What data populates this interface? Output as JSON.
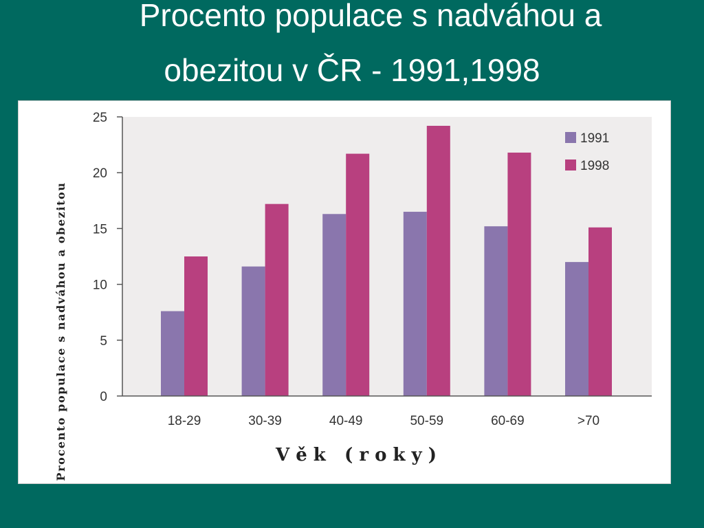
{
  "slide": {
    "title_line1": "Procento populace s nadváhou a",
    "title_line2": "obezitou v ČR - 1991,1998"
  },
  "chart_data": {
    "type": "bar",
    "categories": [
      "18-29",
      "30-39",
      "40-49",
      "50-59",
      "60-69",
      ">70"
    ],
    "series": [
      {
        "name": "1991",
        "color": "#8a76ad",
        "values": [
          7.6,
          11.6,
          16.3,
          16.5,
          15.2,
          12.0
        ]
      },
      {
        "name": "1998",
        "color": "#b8407f",
        "values": [
          12.5,
          17.2,
          21.7,
          24.2,
          21.8,
          15.1
        ]
      }
    ],
    "xlabel": "V ě k   ( r o k y )",
    "ylabel": "Procento populace s nadváhou a obezitou",
    "ylim": [
      0,
      25
    ],
    "yticks": [
      0,
      5,
      10,
      15,
      20,
      25
    ],
    "legend_position": "top-right",
    "plot_background": "#efeded"
  }
}
